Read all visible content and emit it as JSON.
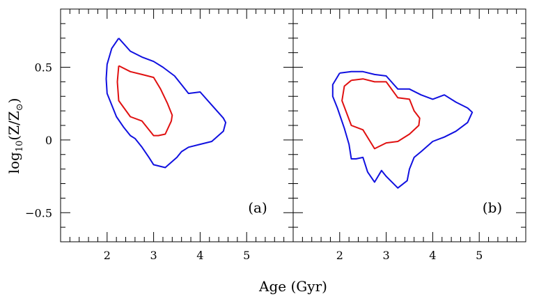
{
  "chart_data": [
    {
      "type": "contour",
      "panel_label": "(a)",
      "xlim": [
        1.0,
        6.0
      ],
      "ylim": [
        -0.7,
        0.9
      ],
      "xticks_major": [
        2,
        3,
        4,
        5
      ],
      "xtick_labels": [
        "2",
        "3",
        "4",
        "5"
      ],
      "yticks_major": [
        -0.5,
        0,
        0.5
      ],
      "ytick_labels": [
        "−0.5",
        "0",
        "0.5"
      ],
      "series": [
        {
          "name": "outer contour",
          "color": "#1010e0",
          "points": [
            [
              2.25,
              0.7
            ],
            [
              2.5,
              0.61
            ],
            [
              2.75,
              0.57
            ],
            [
              3.0,
              0.54
            ],
            [
              3.2,
              0.5
            ],
            [
              3.45,
              0.44
            ],
            [
              3.6,
              0.38
            ],
            [
              3.75,
              0.32
            ],
            [
              4.0,
              0.33
            ],
            [
              4.25,
              0.24
            ],
            [
              4.5,
              0.15
            ],
            [
              4.55,
              0.12
            ],
            [
              4.5,
              0.06
            ],
            [
              4.25,
              -0.01
            ],
            [
              4.0,
              -0.03
            ],
            [
              3.75,
              -0.05
            ],
            [
              3.6,
              -0.08
            ],
            [
              3.5,
              -0.12
            ],
            [
              3.25,
              -0.19
            ],
            [
              3.0,
              -0.17
            ],
            [
              2.9,
              -0.12
            ],
            [
              2.75,
              -0.05
            ],
            [
              2.6,
              0.01
            ],
            [
              2.5,
              0.03
            ],
            [
              2.35,
              0.09
            ],
            [
              2.2,
              0.16
            ],
            [
              2.0,
              0.32
            ],
            [
              1.98,
              0.42
            ],
            [
              2.0,
              0.52
            ],
            [
              2.1,
              0.63
            ],
            [
              2.25,
              0.7
            ]
          ]
        },
        {
          "name": "inner contour",
          "color": "#e01010",
          "points": [
            [
              2.25,
              0.51
            ],
            [
              2.5,
              0.47
            ],
            [
              2.75,
              0.45
            ],
            [
              3.0,
              0.43
            ],
            [
              3.15,
              0.35
            ],
            [
              3.3,
              0.25
            ],
            [
              3.4,
              0.17
            ],
            [
              3.38,
              0.13
            ],
            [
              3.25,
              0.04
            ],
            [
              3.1,
              0.03
            ],
            [
              3.0,
              0.03
            ],
            [
              2.85,
              0.09
            ],
            [
              2.75,
              0.13
            ],
            [
              2.5,
              0.16
            ],
            [
              2.25,
              0.27
            ],
            [
              2.22,
              0.4
            ],
            [
              2.25,
              0.51
            ]
          ]
        }
      ]
    },
    {
      "type": "contour",
      "panel_label": "(b)",
      "xlim": [
        1.0,
        6.0
      ],
      "ylim": [
        -0.7,
        0.9
      ],
      "xticks_major": [
        2,
        3,
        4,
        5
      ],
      "xtick_labels": [
        "2",
        "3",
        "4",
        "5"
      ],
      "yticks_major": [
        -0.5,
        0,
        0.5
      ],
      "ytick_labels": [
        "",
        "",
        ""
      ],
      "series": [
        {
          "name": "outer contour",
          "color": "#1010e0",
          "points": [
            [
              2.0,
              0.46
            ],
            [
              2.25,
              0.47
            ],
            [
              2.5,
              0.47
            ],
            [
              2.75,
              0.45
            ],
            [
              3.0,
              0.44
            ],
            [
              3.25,
              0.35
            ],
            [
              3.5,
              0.35
            ],
            [
              3.75,
              0.31
            ],
            [
              4.0,
              0.28
            ],
            [
              4.25,
              0.31
            ],
            [
              4.5,
              0.26
            ],
            [
              4.75,
              0.22
            ],
            [
              4.85,
              0.19
            ],
            [
              4.75,
              0.12
            ],
            [
              4.5,
              0.06
            ],
            [
              4.25,
              0.02
            ],
            [
              4.0,
              -0.01
            ],
            [
              3.75,
              -0.08
            ],
            [
              3.6,
              -0.12
            ],
            [
              3.5,
              -0.2
            ],
            [
              3.45,
              -0.28
            ],
            [
              3.25,
              -0.33
            ],
            [
              3.0,
              -0.25
            ],
            [
              2.9,
              -0.21
            ],
            [
              2.75,
              -0.29
            ],
            [
              2.6,
              -0.22
            ],
            [
              2.5,
              -0.12
            ],
            [
              2.35,
              -0.13
            ],
            [
              2.25,
              -0.13
            ],
            [
              2.2,
              -0.03
            ],
            [
              2.1,
              0.08
            ],
            [
              1.95,
              0.22
            ],
            [
              1.85,
              0.3
            ],
            [
              1.85,
              0.38
            ],
            [
              2.0,
              0.46
            ]
          ]
        },
        {
          "name": "inner contour",
          "color": "#e01010",
          "points": [
            [
              2.25,
              0.41
            ],
            [
              2.5,
              0.42
            ],
            [
              2.75,
              0.4
            ],
            [
              3.0,
              0.4
            ],
            [
              3.25,
              0.29
            ],
            [
              3.5,
              0.28
            ],
            [
              3.6,
              0.2
            ],
            [
              3.72,
              0.15
            ],
            [
              3.7,
              0.1
            ],
            [
              3.5,
              0.04
            ],
            [
              3.25,
              -0.01
            ],
            [
              3.0,
              -0.02
            ],
            [
              2.75,
              -0.06
            ],
            [
              2.5,
              0.07
            ],
            [
              2.25,
              0.1
            ],
            [
              2.05,
              0.27
            ],
            [
              2.1,
              0.37
            ],
            [
              2.25,
              0.41
            ]
          ]
        }
      ]
    }
  ],
  "axes": {
    "xlabel": "Age (Gyr)",
    "ylabel_main": "log",
    "ylabel_sub": "10",
    "ylabel_rest": "(Z/Z",
    "ylabel_sun_sub": "⊙",
    "ylabel_close": ")"
  }
}
